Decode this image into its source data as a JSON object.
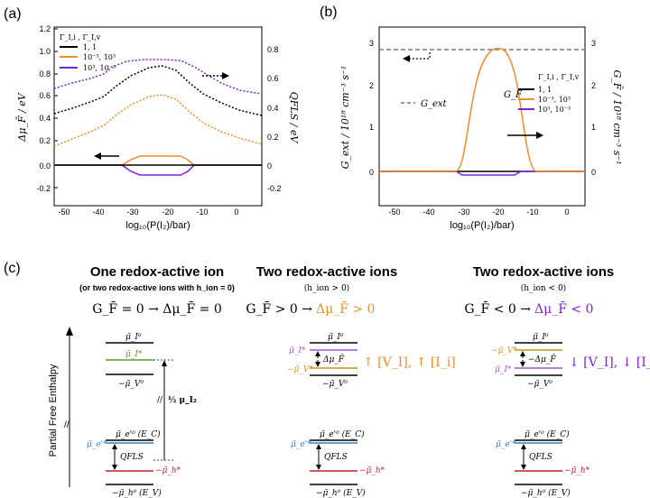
{
  "panel_a": {
    "label": "(a)",
    "y_left_label": "Δμ_F̄ / eV",
    "y_right_label": "QFLS / eV",
    "x_label": "log₁₀(P(I₂)/bar)",
    "legend_title": "Γ_I,i , Γ_I,v",
    "legend": [
      {
        "label": "1, 1",
        "color": "#000000"
      },
      {
        "label": "10⁻³, 10³",
        "color": "#f28c28"
      },
      {
        "label": "10³, 10⁻³",
        "color": "#7f22d6"
      }
    ],
    "x_ticks": [
      "-50",
      "-40",
      "-30",
      "-20",
      "-10",
      "0"
    ],
    "y_left_ticks": [
      "1.2",
      "1.0",
      "0.8",
      "0.6",
      "0.4",
      "0.2",
      "0.0",
      "-0.2"
    ],
    "y_right_ticks": [
      "0.8",
      "0.6",
      "0.4",
      "0.2",
      "0",
      "-0.2"
    ]
  },
  "panel_b": {
    "label": "(b)",
    "y_left_label": "G_ext / 10¹⁸ cm⁻³ s⁻¹",
    "y_right_label": "G_F̄ / 10¹⁸ cm⁻³ s⁻¹",
    "x_label": "log₁₀(P(I₂)/bar)",
    "gext_label": "G_ext",
    "gf_label": "G_F̄",
    "legend_title": "Γ_I,i , Γ_I,v",
    "legend": [
      {
        "label": "1, 1",
        "color": "#000000"
      },
      {
        "label": "10⁻³, 10³",
        "color": "#f28c28"
      },
      {
        "label": "10³, 10⁻³",
        "color": "#7f22d6"
      }
    ],
    "x_ticks": [
      "-50",
      "-40",
      "-30",
      "-20",
      "-10",
      "0"
    ],
    "y_left_ticks": [
      "3",
      "2",
      "1",
      "0"
    ],
    "y_right_ticks": [
      "3",
      "2",
      "1",
      "0"
    ]
  },
  "panel_c": {
    "label": "(c)",
    "y_axis_label": "Partial Free Enthalpy",
    "columns": [
      {
        "title": "One redox-active ion",
        "subtitle": "(or two redox-active ions with h_ion = 0)",
        "equation": "G_F̄ = 0  → Δμ_F̄ = 0",
        "eq_color": "#000000"
      },
      {
        "title": "Two redox-active ions",
        "subtitle": "(h_ion > 0)",
        "equation_left": "G_F̄ > 0  →",
        "equation_right": "Δμ_F̄ > 0",
        "eq_color": "#f28c28",
        "trend": "↑ [V_I], ↑ [I_i]"
      },
      {
        "title": "Two redox-active ions",
        "subtitle": "(h_ion < 0)",
        "equation_left": "G_F̄ < 0  →",
        "equation_right": "Δμ_F̄ < 0",
        "eq_color": "#7f22d6",
        "trend": "↓ [V_I], ↓ [I_i]"
      }
    ],
    "levels": {
      "mu_i0": "μ̃_I⁰",
      "mu_i_star": "μ̃_I*",
      "mu_v0": "−μ̃_V⁰",
      "mu_v_star": "−μ̃_V*",
      "mu_e0": "μ̃_e'⁰ (E_C)",
      "mu_e_star": "μ̃_e'*",
      "mu_h_star": "−μ̃_h*",
      "mu_h0": "−μ̃_h⁰ (E_V)",
      "half_mu": "½ μ_I₂",
      "qfls": "QFLS",
      "delta_mu": "Δμ_F̄",
      "neg_delta_mu": "−Δμ_F̄"
    },
    "colors": {
      "green": "#5aa02c",
      "blue": "#3d7fc4",
      "red": "#c0202a",
      "orange_line": "#c8961e",
      "purple_line": "#9b59d0"
    }
  }
}
